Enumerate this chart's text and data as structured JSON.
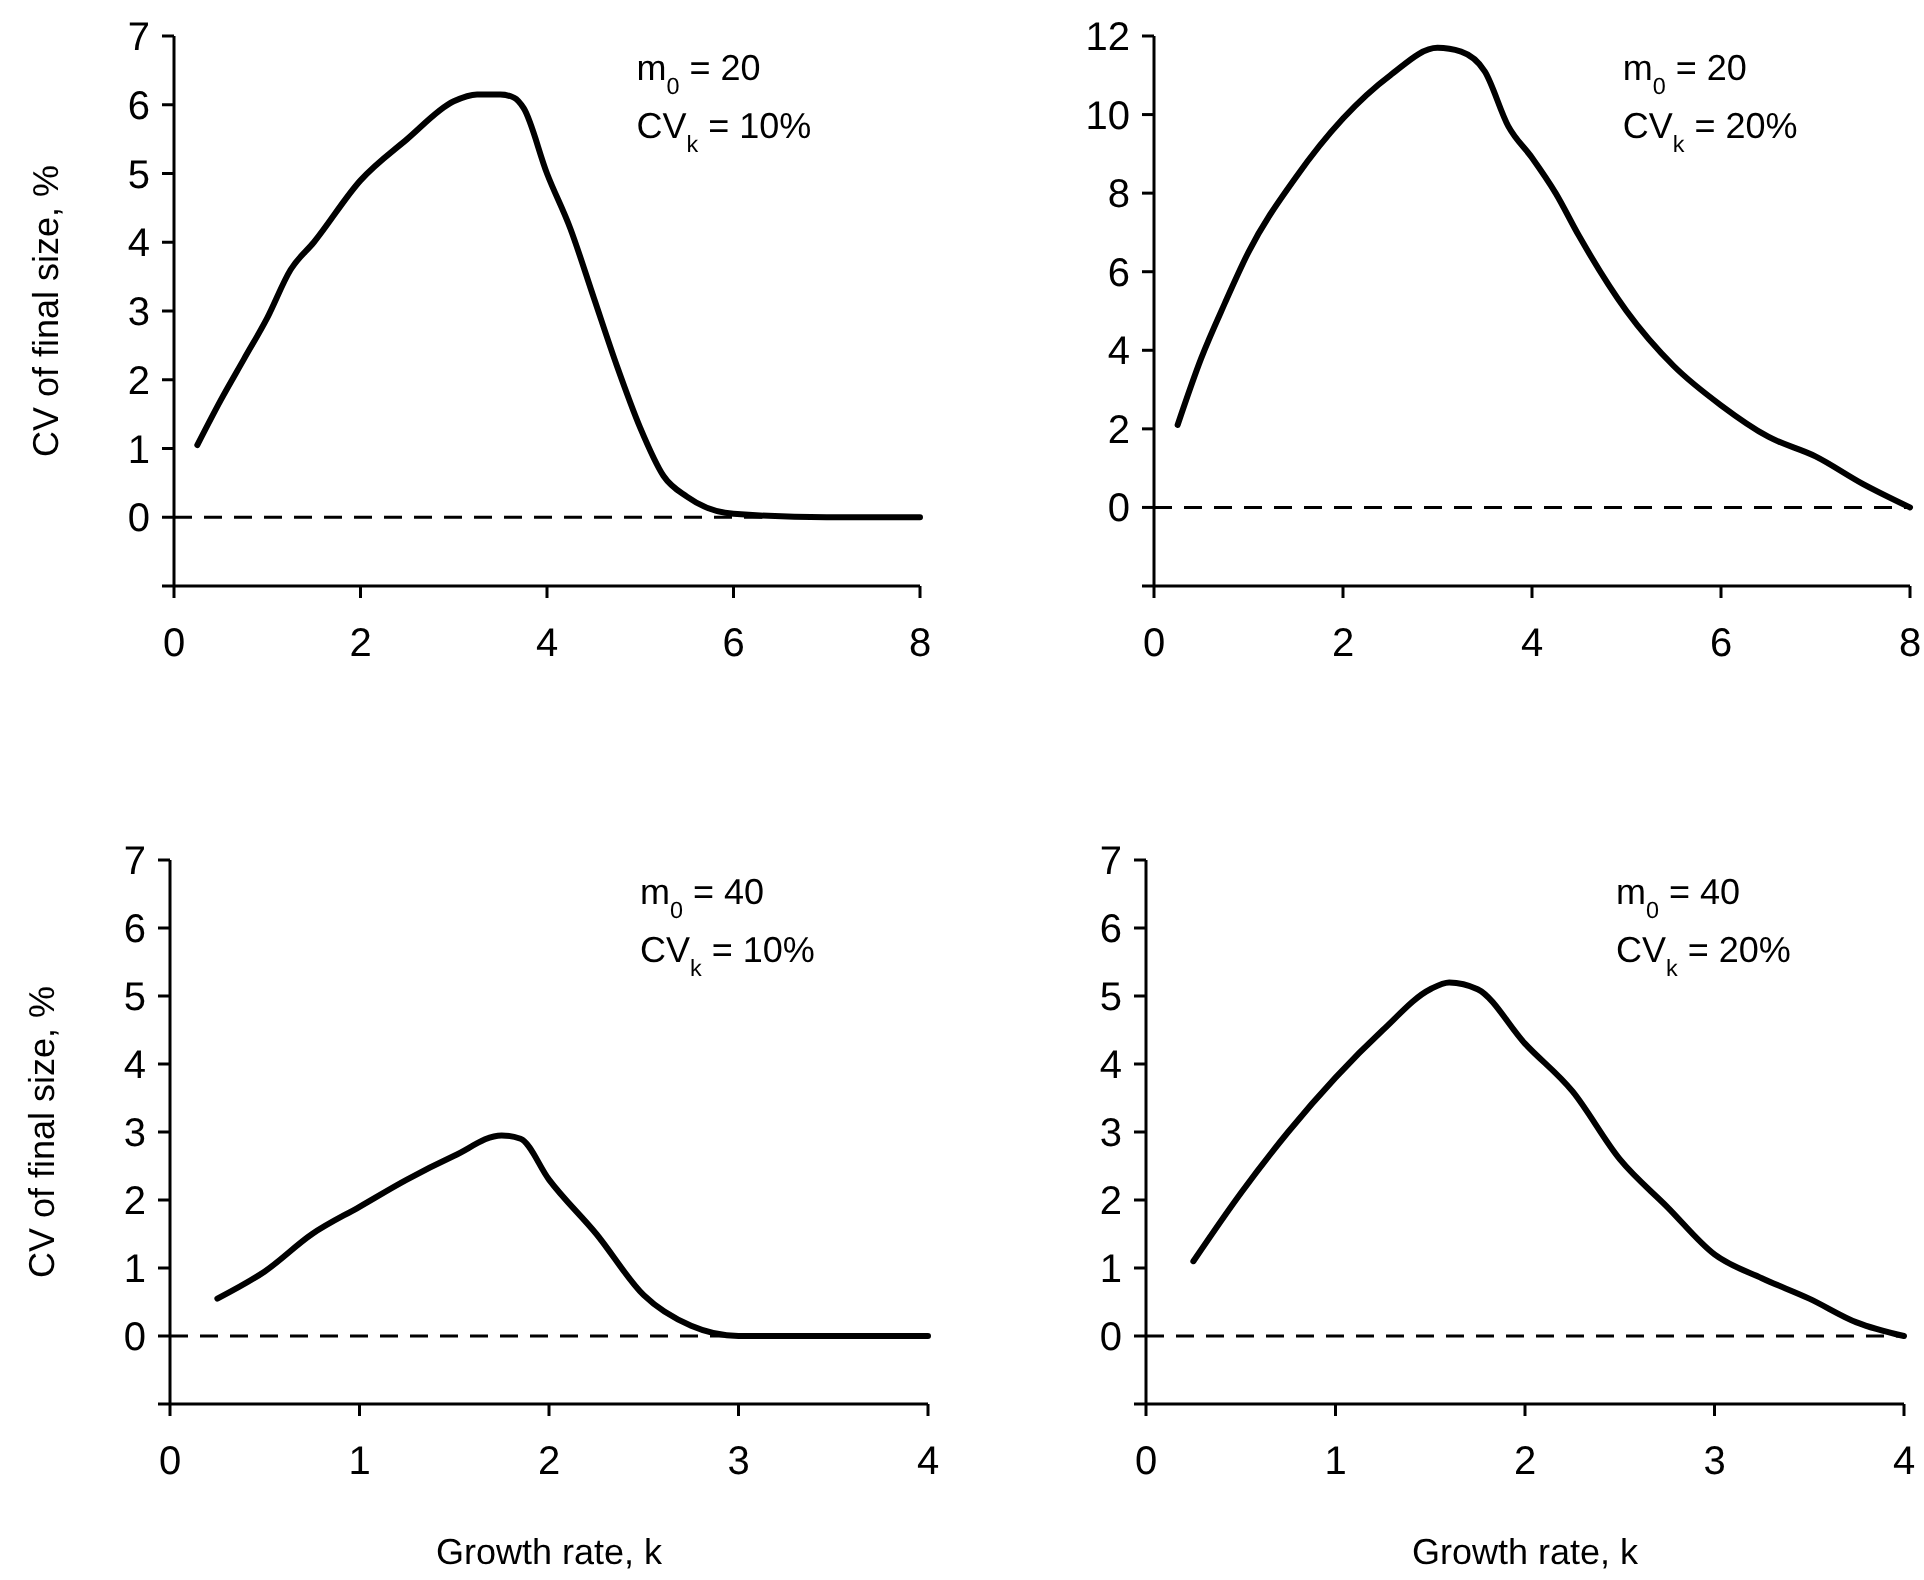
{
  "chart_data": [
    {
      "type": "line",
      "ylabel": "CV of final size, %",
      "annotations": [
        "m$_{0}$ = 20",
        "CV$_{k}$ = 10%"
      ],
      "xlim": [
        0,
        8
      ],
      "xticks": [
        0,
        2,
        4,
        6,
        8
      ],
      "ylim": [
        -1,
        7
      ],
      "yticks": [
        0,
        1,
        2,
        3,
        4,
        5,
        6,
        7
      ],
      "ref_lines": [
        {
          "axis": "y",
          "value": 0,
          "line_style": "dashed",
          "color": "#000000"
        }
      ],
      "series": [
        {
          "color": "#000000",
          "x": [
            0.25,
            0.5,
            0.75,
            1,
            1.25,
            1.5,
            2,
            2.5,
            3,
            3.25,
            3.5,
            3.65,
            3.75,
            4,
            4.25,
            4.5,
            4.75,
            5,
            5.25,
            5.5,
            6,
            7,
            8
          ],
          "values": [
            1.05,
            1.7,
            2.3,
            2.9,
            3.6,
            4.0,
            4.9,
            5.5,
            6.05,
            6.15,
            6.15,
            6.1,
            5.95,
            5.0,
            4.2,
            3.2,
            2.2,
            1.3,
            0.6,
            0.3,
            0.05,
            0,
            0
          ]
        }
      ]
    },
    {
      "type": "line",
      "annotations": [
        "m$_{0}$ = 20",
        "CV$_{k}$ = 20%"
      ],
      "xlim": [
        0,
        8
      ],
      "xticks": [
        0,
        2,
        4,
        6,
        8
      ],
      "ylim": [
        -2,
        12
      ],
      "yticks": [
        0,
        2,
        4,
        6,
        8,
        10,
        12
      ],
      "ref_lines": [
        {
          "axis": "y",
          "value": 0,
          "line_style": "dashed",
          "color": "#000000"
        }
      ],
      "series": [
        {
          "color": "#000000",
          "x": [
            0.25,
            0.5,
            0.75,
            1,
            1.5,
            2,
            2.5,
            3,
            3.25,
            3.5,
            3.75,
            4,
            4.25,
            4.5,
            5,
            5.5,
            6,
            6.5,
            7,
            7.5,
            8
          ],
          "values": [
            2.1,
            3.8,
            5.2,
            6.5,
            8.4,
            9.9,
            11.0,
            11.7,
            11.6,
            11.1,
            9.7,
            8.9,
            8.0,
            6.9,
            5.0,
            3.6,
            2.6,
            1.8,
            1.3,
            0.6,
            0
          ]
        }
      ]
    },
    {
      "type": "line",
      "xlabel": "Growth rate, k",
      "ylabel": "CV of final size, %",
      "annotations": [
        "m$_{0}$ = 40",
        "CV$_{k}$ = 10%"
      ],
      "xlim": [
        0,
        4
      ],
      "xticks": [
        0,
        1,
        2,
        3,
        4
      ],
      "ylim": [
        -1,
        7
      ],
      "yticks": [
        0,
        1,
        2,
        3,
        4,
        5,
        6,
        7
      ],
      "ref_lines": [
        {
          "axis": "y",
          "value": 0,
          "line_style": "dashed",
          "color": "#000000"
        }
      ],
      "series": [
        {
          "color": "#000000",
          "x": [
            0.25,
            0.5,
            0.75,
            1,
            1.25,
            1.5,
            1.75,
            1.85,
            2,
            2.25,
            2.5,
            2.75,
            3,
            4
          ],
          "values": [
            0.55,
            0.95,
            1.5,
            1.9,
            2.3,
            2.65,
            2.95,
            2.9,
            2.3,
            1.5,
            0.6,
            0.15,
            0,
            0
          ]
        }
      ]
    },
    {
      "type": "line",
      "xlabel": "Growth rate, k",
      "annotations": [
        "m$_{0}$ = 40",
        "CV$_{k}$ = 20%"
      ],
      "xlim": [
        0,
        4
      ],
      "xticks": [
        0,
        1,
        2,
        3,
        4
      ],
      "ylim": [
        -1,
        7
      ],
      "yticks": [
        0,
        1,
        2,
        3,
        4,
        5,
        6,
        7
      ],
      "ref_lines": [
        {
          "axis": "y",
          "value": 0,
          "line_style": "dashed",
          "color": "#000000"
        }
      ],
      "series": [
        {
          "color": "#000000",
          "x": [
            0.25,
            0.5,
            0.75,
            1,
            1.25,
            1.5,
            1.6,
            1.75,
            2,
            2.25,
            2.5,
            2.75,
            3,
            3.25,
            3.5,
            3.75,
            4
          ],
          "values": [
            1.1,
            2.1,
            3.0,
            3.8,
            4.5,
            5.1,
            5.2,
            5.1,
            4.3,
            3.6,
            2.6,
            1.9,
            1.2,
            0.85,
            0.55,
            0.2,
            0
          ]
        }
      ]
    }
  ]
}
